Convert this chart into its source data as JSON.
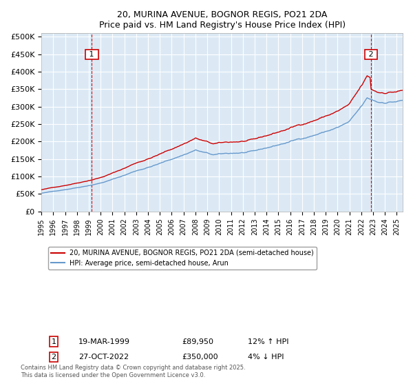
{
  "title": "20, MURINA AVENUE, BOGNOR REGIS, PO21 2DA",
  "subtitle": "Price paid vs. HM Land Registry's House Price Index (HPI)",
  "bg_color": "#dce9f5",
  "plot_bg_color": "#dce9f5",
  "line1_color": "#cc0000",
  "line2_color": "#6699cc",
  "ylim": [
    0,
    510000
  ],
  "yticks": [
    0,
    50000,
    100000,
    150000,
    200000,
    250000,
    300000,
    350000,
    400000,
    450000,
    500000
  ],
  "xlim_start": 1995.0,
  "xlim_end": 2025.5,
  "xticks": [
    1995,
    1996,
    1997,
    1998,
    1999,
    2000,
    2001,
    2002,
    2003,
    2004,
    2005,
    2006,
    2007,
    2008,
    2009,
    2010,
    2011,
    2012,
    2013,
    2014,
    2015,
    2016,
    2017,
    2018,
    2019,
    2020,
    2021,
    2022,
    2023,
    2024,
    2025
  ],
  "legend_label1": "20, MURINA AVENUE, BOGNOR REGIS, PO21 2DA (semi-detached house)",
  "legend_label2": "HPI: Average price, semi-detached house, Arun",
  "marker1_label": "1",
  "marker1_x": 1999.25,
  "marker1_y": 89950,
  "marker2_label": "2",
  "marker2_x": 2022.82,
  "marker2_y": 350000,
  "annotation1_date": "19-MAR-1999",
  "annotation1_price": "£89,950",
  "annotation1_hpi": "12% ↑ HPI",
  "annotation2_date": "27-OCT-2022",
  "annotation2_price": "£350,000",
  "annotation2_hpi": "4% ↓ HPI",
  "footer": "Contains HM Land Registry data © Crown copyright and database right 2025.\nThis data is licensed under the Open Government Licence v3.0."
}
